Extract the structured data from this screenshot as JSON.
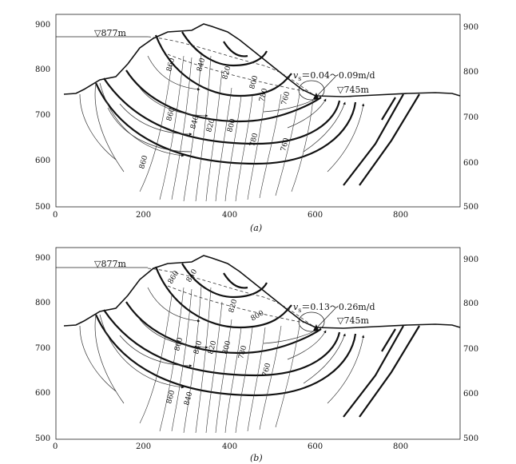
{
  "panels": [
    {
      "caption": "(a)",
      "upstream_level": "▽877m",
      "downstream_level": "▽745m",
      "velocity_label": "v",
      "velocity_subscript": "s",
      "velocity_value": "＝0.04～0.09m/d",
      "contours": [
        "860",
        "840",
        "820",
        "800",
        "780",
        "760",
        "860",
        "840",
        "820",
        "800",
        "780",
        "760",
        "860"
      ]
    },
    {
      "caption": "(b)",
      "upstream_level": "▽877m",
      "downstream_level": "▽745m",
      "velocity_label": "v",
      "velocity_subscript": "s",
      "velocity_value": "＝0.13～0.26m/d",
      "contours": [
        "860",
        "840",
        "820",
        "800",
        "860",
        "840",
        "820",
        "800",
        "780",
        "760",
        "860",
        "840"
      ]
    }
  ],
  "axes": {
    "x_ticks": [
      "0",
      "200",
      "400",
      "600",
      "800"
    ],
    "y_ticks": [
      "500",
      "600",
      "700",
      "800",
      "900"
    ]
  }
}
